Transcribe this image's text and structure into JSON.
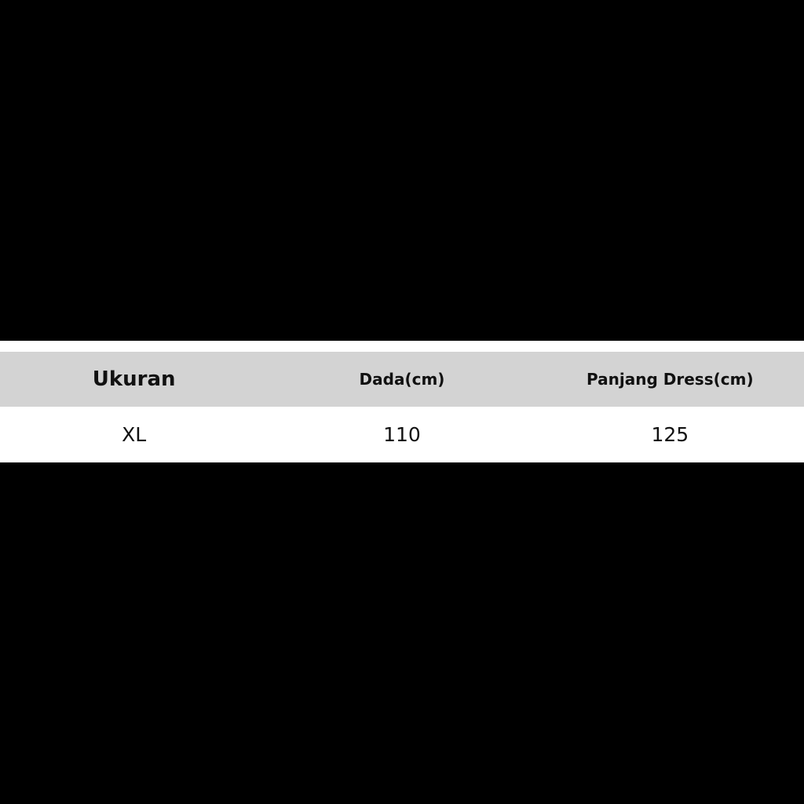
{
  "table": {
    "headers": [
      "Ukuran",
      "Dada(cm)",
      "Panjang Dress(cm)"
    ],
    "rows": [
      [
        "XL",
        "110",
        "125"
      ]
    ]
  }
}
